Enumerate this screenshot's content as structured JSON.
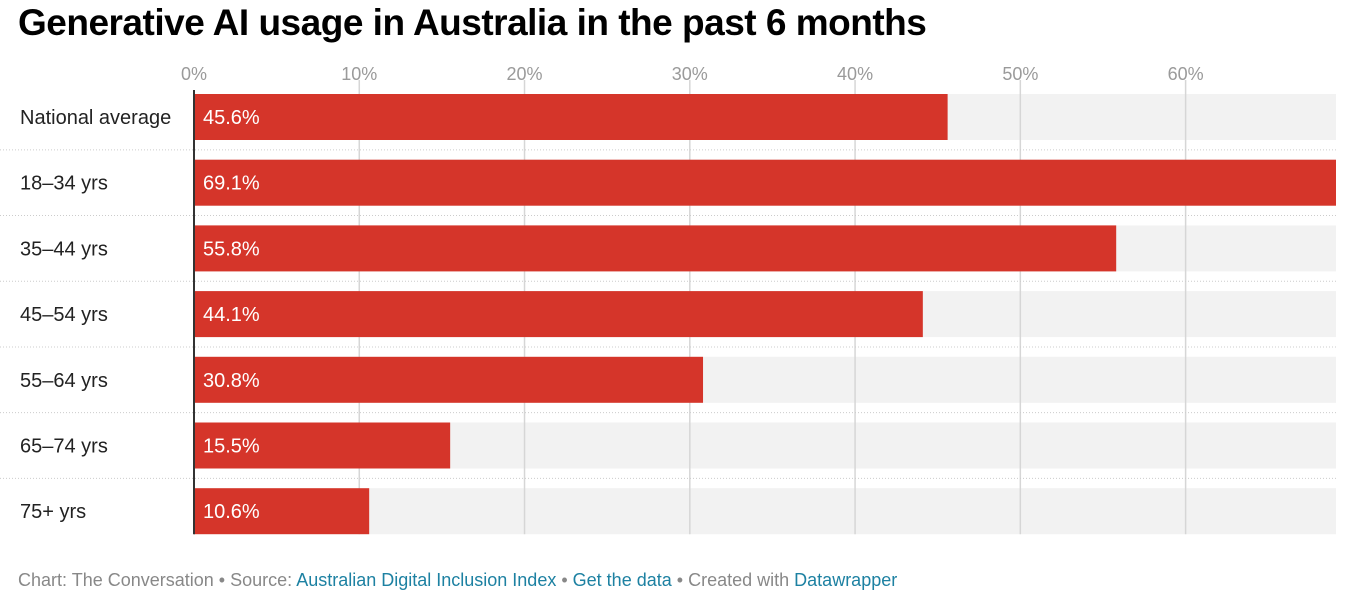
{
  "chart_data": {
    "type": "bar",
    "orientation": "horizontal",
    "title": "Generative AI usage in Australia in the past 6 months",
    "categories": [
      "National average",
      "18–34 yrs",
      "35–44 yrs",
      "45–54 yrs",
      "55–64 yrs",
      "65–74 yrs",
      "75+ yrs"
    ],
    "values": [
      45.6,
      69.1,
      55.8,
      44.1,
      30.8,
      15.5,
      10.6
    ],
    "value_labels": [
      "45.6%",
      "69.1%",
      "55.8%",
      "44.1%",
      "30.8%",
      "15.5%",
      "10.6%"
    ],
    "x_ticks": [
      0,
      10,
      20,
      30,
      40,
      50,
      60
    ],
    "x_tick_labels": [
      "0%",
      "10%",
      "20%",
      "30%",
      "40%",
      "50%",
      "60%"
    ],
    "xlim": [
      0,
      69.1
    ],
    "xlabel": "",
    "ylabel": "",
    "grid": true,
    "bar_color": "#d5352a",
    "background_bar_color": "#f2f2f2"
  },
  "footer": {
    "chart_credit": "Chart: The Conversation",
    "separator": "•",
    "source_prefix": "Source:",
    "source_link": "Australian Digital Inclusion Index",
    "data_link": "Get the data",
    "created_with_prefix": "Created with",
    "created_with_link": "Datawrapper"
  }
}
